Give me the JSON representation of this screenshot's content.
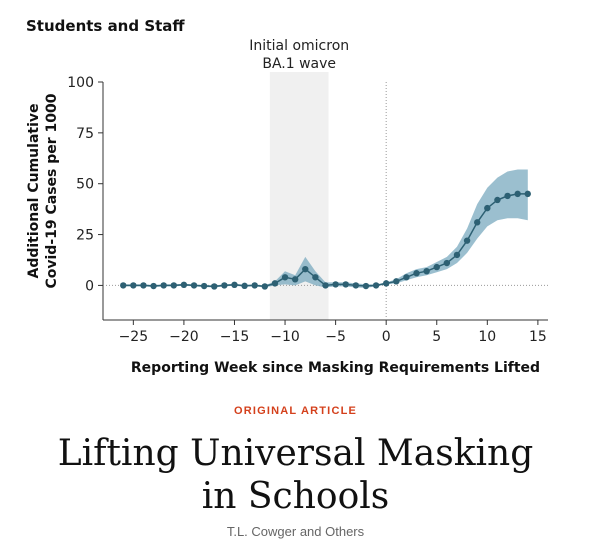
{
  "panel_title": "Students and Staff",
  "article": {
    "kicker": "ORIGINAL ARTICLE",
    "title": "Lifting Universal Masking in Schools",
    "authors": "T.L. Cowger and Others"
  },
  "colors": {
    "line": "#2d6073",
    "band": "#7aa9bf",
    "shade": "#f0f0f0",
    "axis": "#333333"
  },
  "chart_data": {
    "type": "line",
    "xlabel": "Reporting Week since Masking Requirements Lifted",
    "ylabel": [
      "Additional Cumulative",
      "Covid-19 Cases per 1000"
    ],
    "xlim": [
      -28,
      16
    ],
    "ylim": [
      -17,
      100
    ],
    "x_ticks": [
      -25,
      -20,
      -15,
      -10,
      -5,
      0,
      5,
      10,
      15
    ],
    "y_ticks": [
      0,
      25,
      50,
      75,
      100
    ],
    "shaded_region": {
      "x_start": -11.5,
      "x_end": -5.7,
      "label": [
        "Initial omicron",
        "BA.1 wave"
      ]
    },
    "reference_line_x": 0,
    "series": [
      {
        "x": [
          -26,
          -25,
          -24,
          -23,
          -22,
          -21,
          -20,
          -19,
          -18,
          -17,
          -16,
          -15,
          -14,
          -13,
          -12,
          -11,
          -10,
          -9,
          -8,
          -7,
          -6,
          -5,
          -4,
          -3,
          -2,
          -1,
          0,
          1,
          2,
          3,
          4,
          5,
          6,
          7,
          8,
          9,
          10,
          11,
          12,
          13,
          14
        ],
        "y": [
          0,
          0,
          0,
          -0.3,
          0,
          0,
          0.3,
          0,
          -0.3,
          -0.5,
          0,
          0.3,
          -0.2,
          0,
          -0.5,
          1,
          4,
          3,
          8,
          4,
          0,
          0.5,
          0.5,
          0,
          -0.3,
          0,
          1,
          2,
          4,
          6,
          7,
          9,
          11,
          15,
          22,
          31,
          38,
          42,
          44,
          45,
          45
        ],
        "lower": [
          -0.5,
          -0.5,
          -0.5,
          -0.8,
          -0.5,
          -0.5,
          -0.2,
          -0.5,
          -0.8,
          -1,
          -0.5,
          -0.2,
          -0.7,
          -0.5,
          -1,
          0,
          0.5,
          0,
          2,
          0,
          -1,
          -0.5,
          -0.5,
          -1,
          -1.2,
          -0.5,
          0.5,
          1,
          2.5,
          4,
          5,
          6.5,
          8,
          11,
          16,
          23,
          29,
          32,
          33,
          33,
          32
        ],
        "upper": [
          0.5,
          0.5,
          0.5,
          0.2,
          0.5,
          0.5,
          0.8,
          0.5,
          0.2,
          0,
          0.5,
          0.8,
          0.3,
          0.5,
          0,
          2,
          7,
          5,
          14,
          7,
          1.5,
          1.5,
          1.5,
          1,
          0.6,
          0.5,
          1.5,
          3,
          6,
          8,
          9,
          11.5,
          14,
          19,
          28,
          40,
          48,
          53,
          56,
          57,
          57
        ]
      }
    ]
  }
}
